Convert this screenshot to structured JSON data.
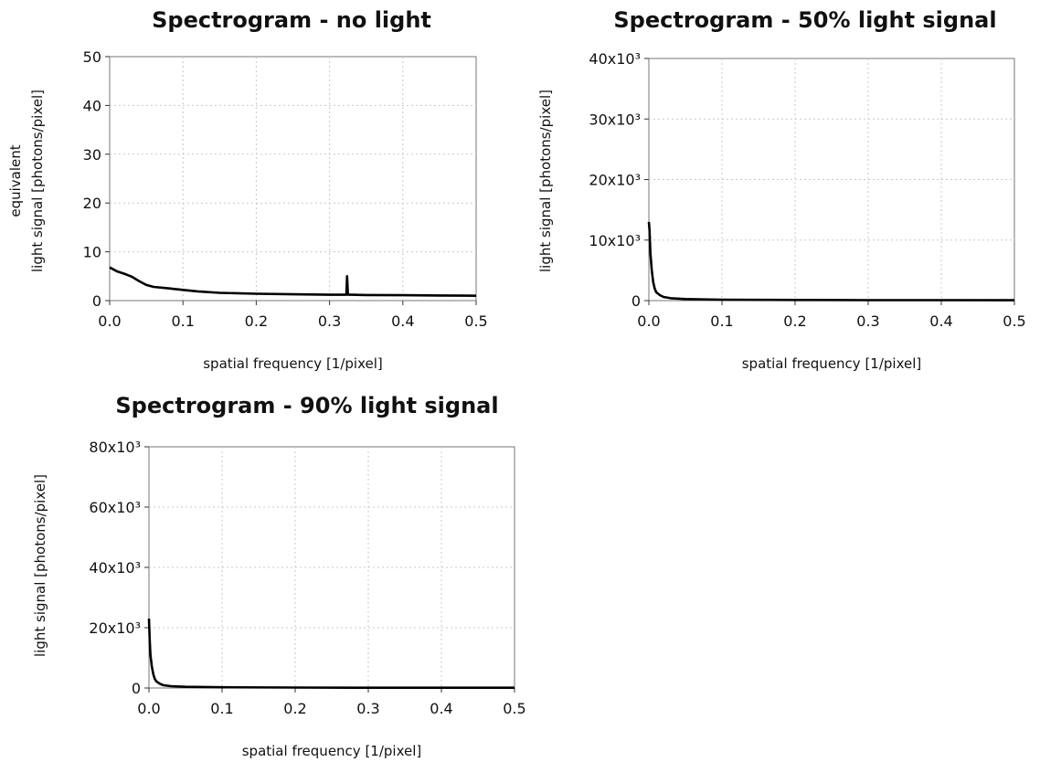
{
  "chart_data": [
    {
      "type": "line",
      "title": "Spectrogram - no light",
      "xlabel": "spatial frequency [1/pixel]",
      "ylabel_lines": [
        "equivalent",
        "light signal [photons/pixel]"
      ],
      "xlim": [
        0,
        0.5
      ],
      "ylim": [
        0,
        50
      ],
      "xticks": [
        0,
        0.1,
        0.2,
        0.3,
        0.4,
        0.5
      ],
      "xtick_labels": [
        "0.0",
        "0.1",
        "0.2",
        "0.3",
        "0.4",
        "0.5"
      ],
      "yticks": [
        0,
        10,
        20,
        30,
        40,
        50
      ],
      "ytick_labels": [
        "0",
        "10",
        "20",
        "30",
        "40",
        "50"
      ],
      "grid": true,
      "series": [
        {
          "x": [
            0,
            0.005,
            0.01,
            0.02,
            0.03,
            0.04,
            0.05,
            0.06,
            0.08,
            0.1,
            0.12,
            0.15,
            0.2,
            0.25,
            0.3,
            0.32,
            0.323,
            0.324,
            0.325,
            0.326,
            0.327,
            0.33,
            0.35,
            0.4,
            0.45,
            0.5
          ],
          "y": [
            6.8,
            6.4,
            6.0,
            5.5,
            4.9,
            4.0,
            3.2,
            2.8,
            2.5,
            2.2,
            1.9,
            1.6,
            1.4,
            1.3,
            1.2,
            1.2,
            1.2,
            5.0,
            1.2,
            1.2,
            1.2,
            1.2,
            1.15,
            1.1,
            1.05,
            1.0
          ]
        }
      ]
    },
    {
      "type": "line",
      "title": "Spectrogram - 50% light signal",
      "xlabel": "spatial frequency [1/pixel]",
      "ylabel_lines": [
        "light signal [photons/pixel]"
      ],
      "xlim": [
        0,
        0.5
      ],
      "ylim": [
        0,
        40000
      ],
      "xticks": [
        0,
        0.1,
        0.2,
        0.3,
        0.4,
        0.5
      ],
      "xtick_labels": [
        "0.0",
        "0.1",
        "0.2",
        "0.3",
        "0.4",
        "0.5"
      ],
      "yticks": [
        0,
        10000,
        20000,
        30000,
        40000
      ],
      "ytick_labels": [
        "0",
        "10x10³",
        "20x10³",
        "30x10³",
        "40x10³"
      ],
      "grid": true,
      "series": [
        {
          "x": [
            0,
            0.001,
            0.002,
            0.004,
            0.006,
            0.008,
            0.01,
            0.015,
            0.02,
            0.03,
            0.05,
            0.1,
            0.2,
            0.3,
            0.4,
            0.5
          ],
          "y": [
            13000,
            11500,
            8000,
            5000,
            3000,
            2000,
            1400,
            900,
            600,
            400,
            250,
            150,
            100,
            80,
            70,
            60
          ]
        }
      ]
    },
    {
      "type": "line",
      "title": "Spectrogram - 90% light signal",
      "xlabel": "spatial frequency [1/pixel]",
      "ylabel_lines": [
        "light signal [photons/pixel]"
      ],
      "xlim": [
        0,
        0.5
      ],
      "ylim": [
        0,
        80000
      ],
      "xticks": [
        0,
        0.1,
        0.2,
        0.3,
        0.4,
        0.5
      ],
      "xtick_labels": [
        "0.0",
        "0.1",
        "0.2",
        "0.3",
        "0.4",
        "0.5"
      ],
      "yticks": [
        0,
        20000,
        40000,
        60000,
        80000
      ],
      "ytick_labels": [
        "0",
        "20x10³",
        "40x10³",
        "60x10³",
        "80x10³"
      ],
      "grid": true,
      "series": [
        {
          "x": [
            0,
            0.001,
            0.002,
            0.004,
            0.006,
            0.008,
            0.01,
            0.015,
            0.02,
            0.03,
            0.05,
            0.1,
            0.2,
            0.3,
            0.4,
            0.5
          ],
          "y": [
            23000,
            16000,
            11000,
            7000,
            4500,
            3000,
            2200,
            1400,
            900,
            600,
            400,
            250,
            150,
            100,
            90,
            80
          ]
        }
      ]
    }
  ]
}
